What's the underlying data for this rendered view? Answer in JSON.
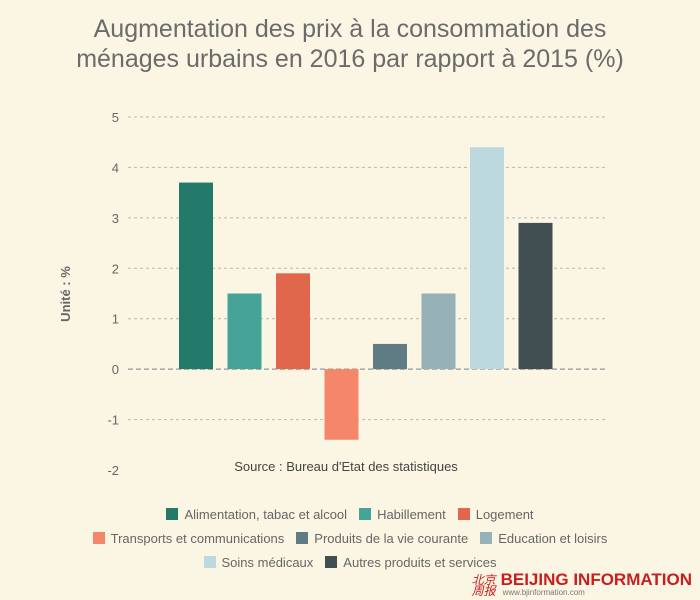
{
  "chart_data": {
    "type": "bar",
    "title_lines": [
      "Augmentation des prix à la consommation des",
      "ménages urbains en 2016 par rapport à 2015 (%)"
    ],
    "ylabel": "Unité : %",
    "xlabel": "",
    "ylim": [
      -2,
      5
    ],
    "yticks": [
      "5",
      "4",
      "3",
      "2",
      "1",
      "0",
      "-1",
      "-2"
    ],
    "grid": "horizontal-dashed",
    "legend_position": "bottom",
    "categories": [
      "Alimentation, tabac et alcool",
      "Habillement",
      "Logement",
      "Transports et communications",
      "Produits de la vie courante",
      "Education et loisirs",
      "Soins médicaux",
      "Autres produits et services"
    ],
    "values": [
      3.7,
      1.5,
      1.9,
      -1.4,
      0.5,
      1.5,
      4.4,
      2.9
    ],
    "colors": [
      "#237a6a",
      "#45a397",
      "#e0674b",
      "#f4876a",
      "#5f7b84",
      "#97b1b9",
      "#bcd9df",
      "#414e52"
    ],
    "annotation": "Source : Bureau d'Etat des statistiques"
  },
  "brand": {
    "mark": "北京周报",
    "name": "BEIJING INFORMATION",
    "url": "www.bjinformation.com"
  }
}
